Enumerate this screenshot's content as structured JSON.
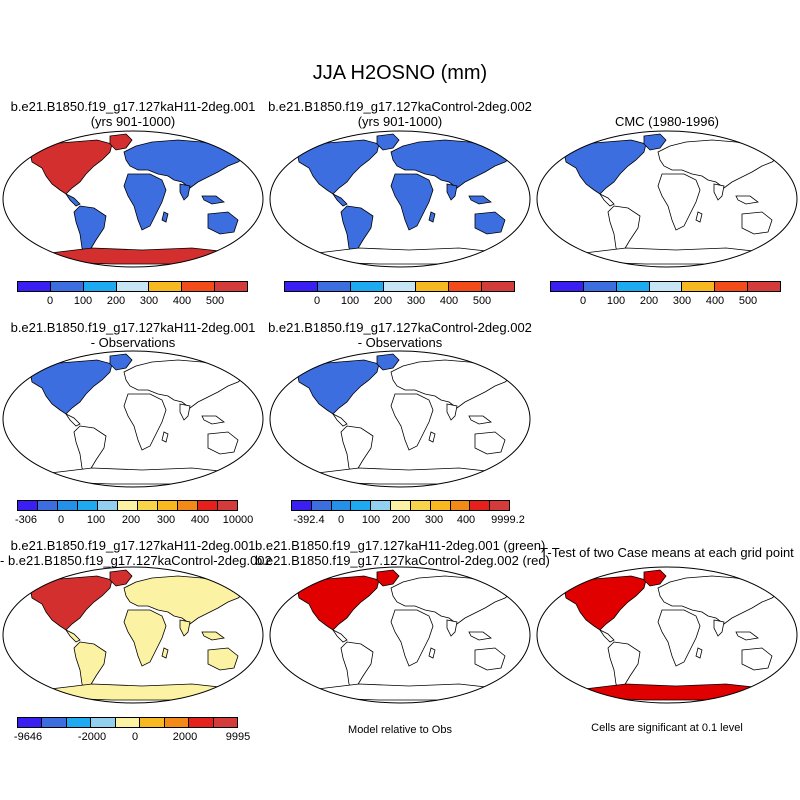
{
  "title": "JJA H2OSNO (mm)",
  "panels": [
    {
      "line1": "b.e21.B1850.f19_g17.127kaH11-2deg.001",
      "line2": "(yrs 901-1000)",
      "fill": "#3c6ee0",
      "north": "#d32f2f",
      "south": "#d32f2f"
    },
    {
      "line1": "b.e21.B1850.f19_g17.127kaControl-2deg.002",
      "line2": "(yrs 901-1000)",
      "fill": "#3c6ee0",
      "north": "#3c6ee0",
      "south": "#ffffff"
    },
    {
      "line1": "CMC (1980-1996)",
      "line2": "",
      "fill": "#ffffff",
      "north": "#3c6ee0",
      "south": "#ffffff"
    },
    {
      "line1": "b.e21.B1850.f19_g17.127kaH11-2deg.001",
      "line2": "- Observations",
      "fill": "#ffffff",
      "north": "#3c6ee0",
      "south": "#ffffff"
    },
    {
      "line1": "b.e21.B1850.f19_g17.127kaControl-2deg.002",
      "line2": "- Observations",
      "fill": "#ffffff",
      "north": "#3c6ee0",
      "south": "#ffffff"
    },
    {
      "line1": "b.e21.B1850.f19_g17.127kaH11-2deg.001",
      "line2": "- b.e21.B1850.f19_g17.127kaControl-2deg.002",
      "fill": "#fbf3a3",
      "north": "#d32f2f",
      "south": "#fbf3a3"
    },
    {
      "line1": "b.e21.B1850.f19_g17.127kaH11-2deg.001 (green)",
      "line2": "b.e21.B1850.f19_g17.127kaControl-2deg.002 (red)",
      "fill": "#ffffff",
      "north": "#e00000",
      "south": "#ffffff"
    },
    {
      "line1": "T-Test of two Case means at each grid point",
      "line2": "",
      "fill": "#ffffff",
      "north": "#e00000",
      "south": "#e00000"
    }
  ],
  "colorbars": {
    "abs_colors": [
      "#3a1ff2",
      "#3c6ee0",
      "#1eaaf0",
      "#c7e6f5",
      "#f8b820",
      "#f34c1a",
      "#d43b3b"
    ],
    "abs_ticks": [
      "0",
      "100",
      "200",
      "300",
      "400",
      "500"
    ],
    "diff1_colors": [
      "#3a1ff2",
      "#3c6ee0",
      "#2590e8",
      "#1eaaf0",
      "#93d0f0",
      "#fbf3a3",
      "#f8d44a",
      "#f8b820",
      "#f38a18",
      "#e6201a",
      "#d43b3b"
    ],
    "diff1_ticks": [
      "-306",
      "0",
      "100",
      "200",
      "300",
      "400",
      "10000"
    ],
    "diff2_ticks": [
      "-392.4",
      "0",
      "100",
      "200",
      "300",
      "400",
      "9999.2"
    ],
    "diff3_colors": [
      "#3a1ff2",
      "#3c6ee0",
      "#1eaaf0",
      "#93d0f0",
      "#fbf3a3",
      "#f8b820",
      "#f38a18",
      "#e6201a",
      "#d43b3b"
    ],
    "diff3_ticks": [
      "-9646",
      "-2000",
      "0",
      "2000",
      "9995"
    ]
  },
  "notes": {
    "model_rel": "Model relative to Obs",
    "significant": "Cells are significant at 0.1 level"
  }
}
